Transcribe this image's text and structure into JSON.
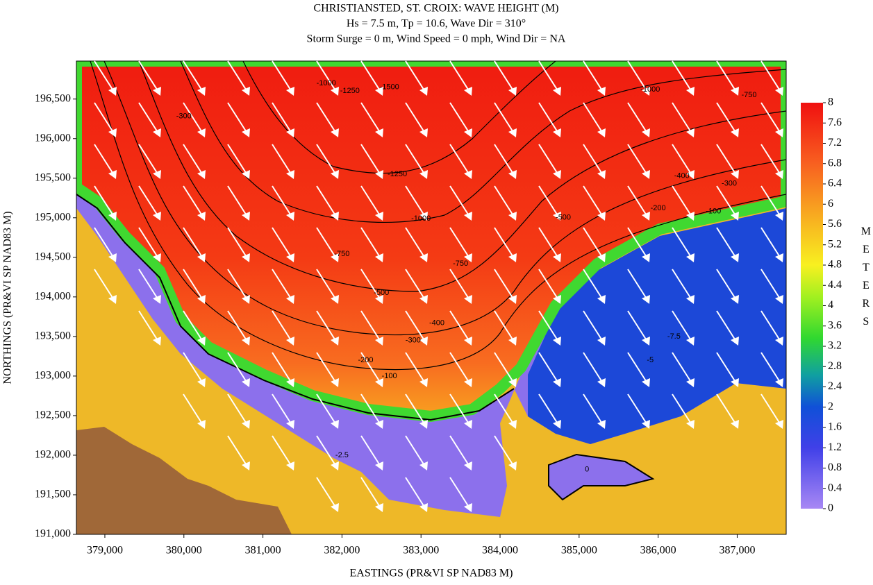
{
  "chart_data": {
    "type": "contour-map",
    "title": "CHRISTIANSTED, ST. CROIX: WAVE HEIGHT (M)",
    "subtitle_lines": [
      "Hs = 7.5 m, Tp = 10.6, Wave Dir = 310°",
      "Storm Surge = 0 m, Wind Speed = 0 mph, Wind Dir = NA"
    ],
    "x_label": "EASTINGS (PR&VI SP NAD83 M)",
    "y_label": "NORTHINGS (PR&VI SP NAD83 M)",
    "xlim": [
      378640,
      387620
    ],
    "xticks": [
      {
        "value": 379000,
        "label": "379,000"
      },
      {
        "value": 380000,
        "label": "380,000"
      },
      {
        "value": 381000,
        "label": "381,000"
      },
      {
        "value": 382000,
        "label": "382,000"
      },
      {
        "value": 383000,
        "label": "383,000"
      },
      {
        "value": 384000,
        "label": "384,000"
      },
      {
        "value": 385000,
        "label": "385,000"
      },
      {
        "value": 386000,
        "label": "386,000"
      },
      {
        "value": 387000,
        "label": "387,000"
      }
    ],
    "ylim": [
      191000,
      196980
    ],
    "yticks": [
      {
        "value": 191000,
        "label": "191,000"
      },
      {
        "value": 191500,
        "label": "191,500"
      },
      {
        "value": 192000,
        "label": "192,000"
      },
      {
        "value": 192500,
        "label": "192,500"
      },
      {
        "value": 193000,
        "label": "193,000"
      },
      {
        "value": 193500,
        "label": "193,500"
      },
      {
        "value": 194000,
        "label": "194,000"
      },
      {
        "value": 194500,
        "label": "194,500"
      },
      {
        "value": 195000,
        "label": "195,000"
      },
      {
        "value": 195500,
        "label": "195,500"
      },
      {
        "value": 196000,
        "label": "196,000"
      },
      {
        "value": 196500,
        "label": "196,500"
      }
    ],
    "colorbar": {
      "label": "METERS",
      "lim": [
        0,
        8
      ],
      "ticks": [
        0,
        0.4,
        0.8,
        1.2,
        1.6,
        2,
        2.4,
        2.8,
        3.2,
        3.6,
        4,
        4.4,
        4.8,
        5.2,
        5.6,
        6,
        6.4,
        6.8,
        7.2,
        7.6,
        8
      ]
    },
    "contour_labels": [
      {
        "value": -1000,
        "x": 381800,
        "y": 196700
      },
      {
        "value": -1250,
        "x": 382100,
        "y": 196600
      },
      {
        "value": -1500,
        "x": 382600,
        "y": 196650
      },
      {
        "value": -1250,
        "x": 382700,
        "y": 195550
      },
      {
        "value": -1000,
        "x": 383000,
        "y": 194990
      },
      {
        "value": -750,
        "x": 382000,
        "y": 194540
      },
      {
        "value": -750,
        "x": 383500,
        "y": 194420
      },
      {
        "value": -500,
        "x": 382500,
        "y": 194050
      },
      {
        "value": -400,
        "x": 383200,
        "y": 193670
      },
      {
        "value": -300,
        "x": 382900,
        "y": 193450
      },
      {
        "value": -200,
        "x": 382300,
        "y": 193200
      },
      {
        "value": -100,
        "x": 382600,
        "y": 193000
      },
      {
        "value": -1000,
        "x": 385900,
        "y": 196620
      },
      {
        "value": -750,
        "x": 387150,
        "y": 196550
      },
      {
        "value": -500,
        "x": 384800,
        "y": 195000
      },
      {
        "value": -400,
        "x": 386300,
        "y": 195530
      },
      {
        "value": -300,
        "x": 386900,
        "y": 195430
      },
      {
        "value": -200,
        "x": 386000,
        "y": 195120
      },
      {
        "value": -100,
        "x": 386700,
        "y": 195080
      },
      {
        "value": -7.5,
        "x": 386200,
        "y": 193500
      },
      {
        "value": -5,
        "x": 385900,
        "y": 193200
      },
      {
        "value": -2.5,
        "x": 382000,
        "y": 192000
      },
      {
        "value": 0,
        "x": 385100,
        "y": 191820
      },
      {
        "value": -300,
        "x": 380000,
        "y": 196280
      }
    ]
  }
}
